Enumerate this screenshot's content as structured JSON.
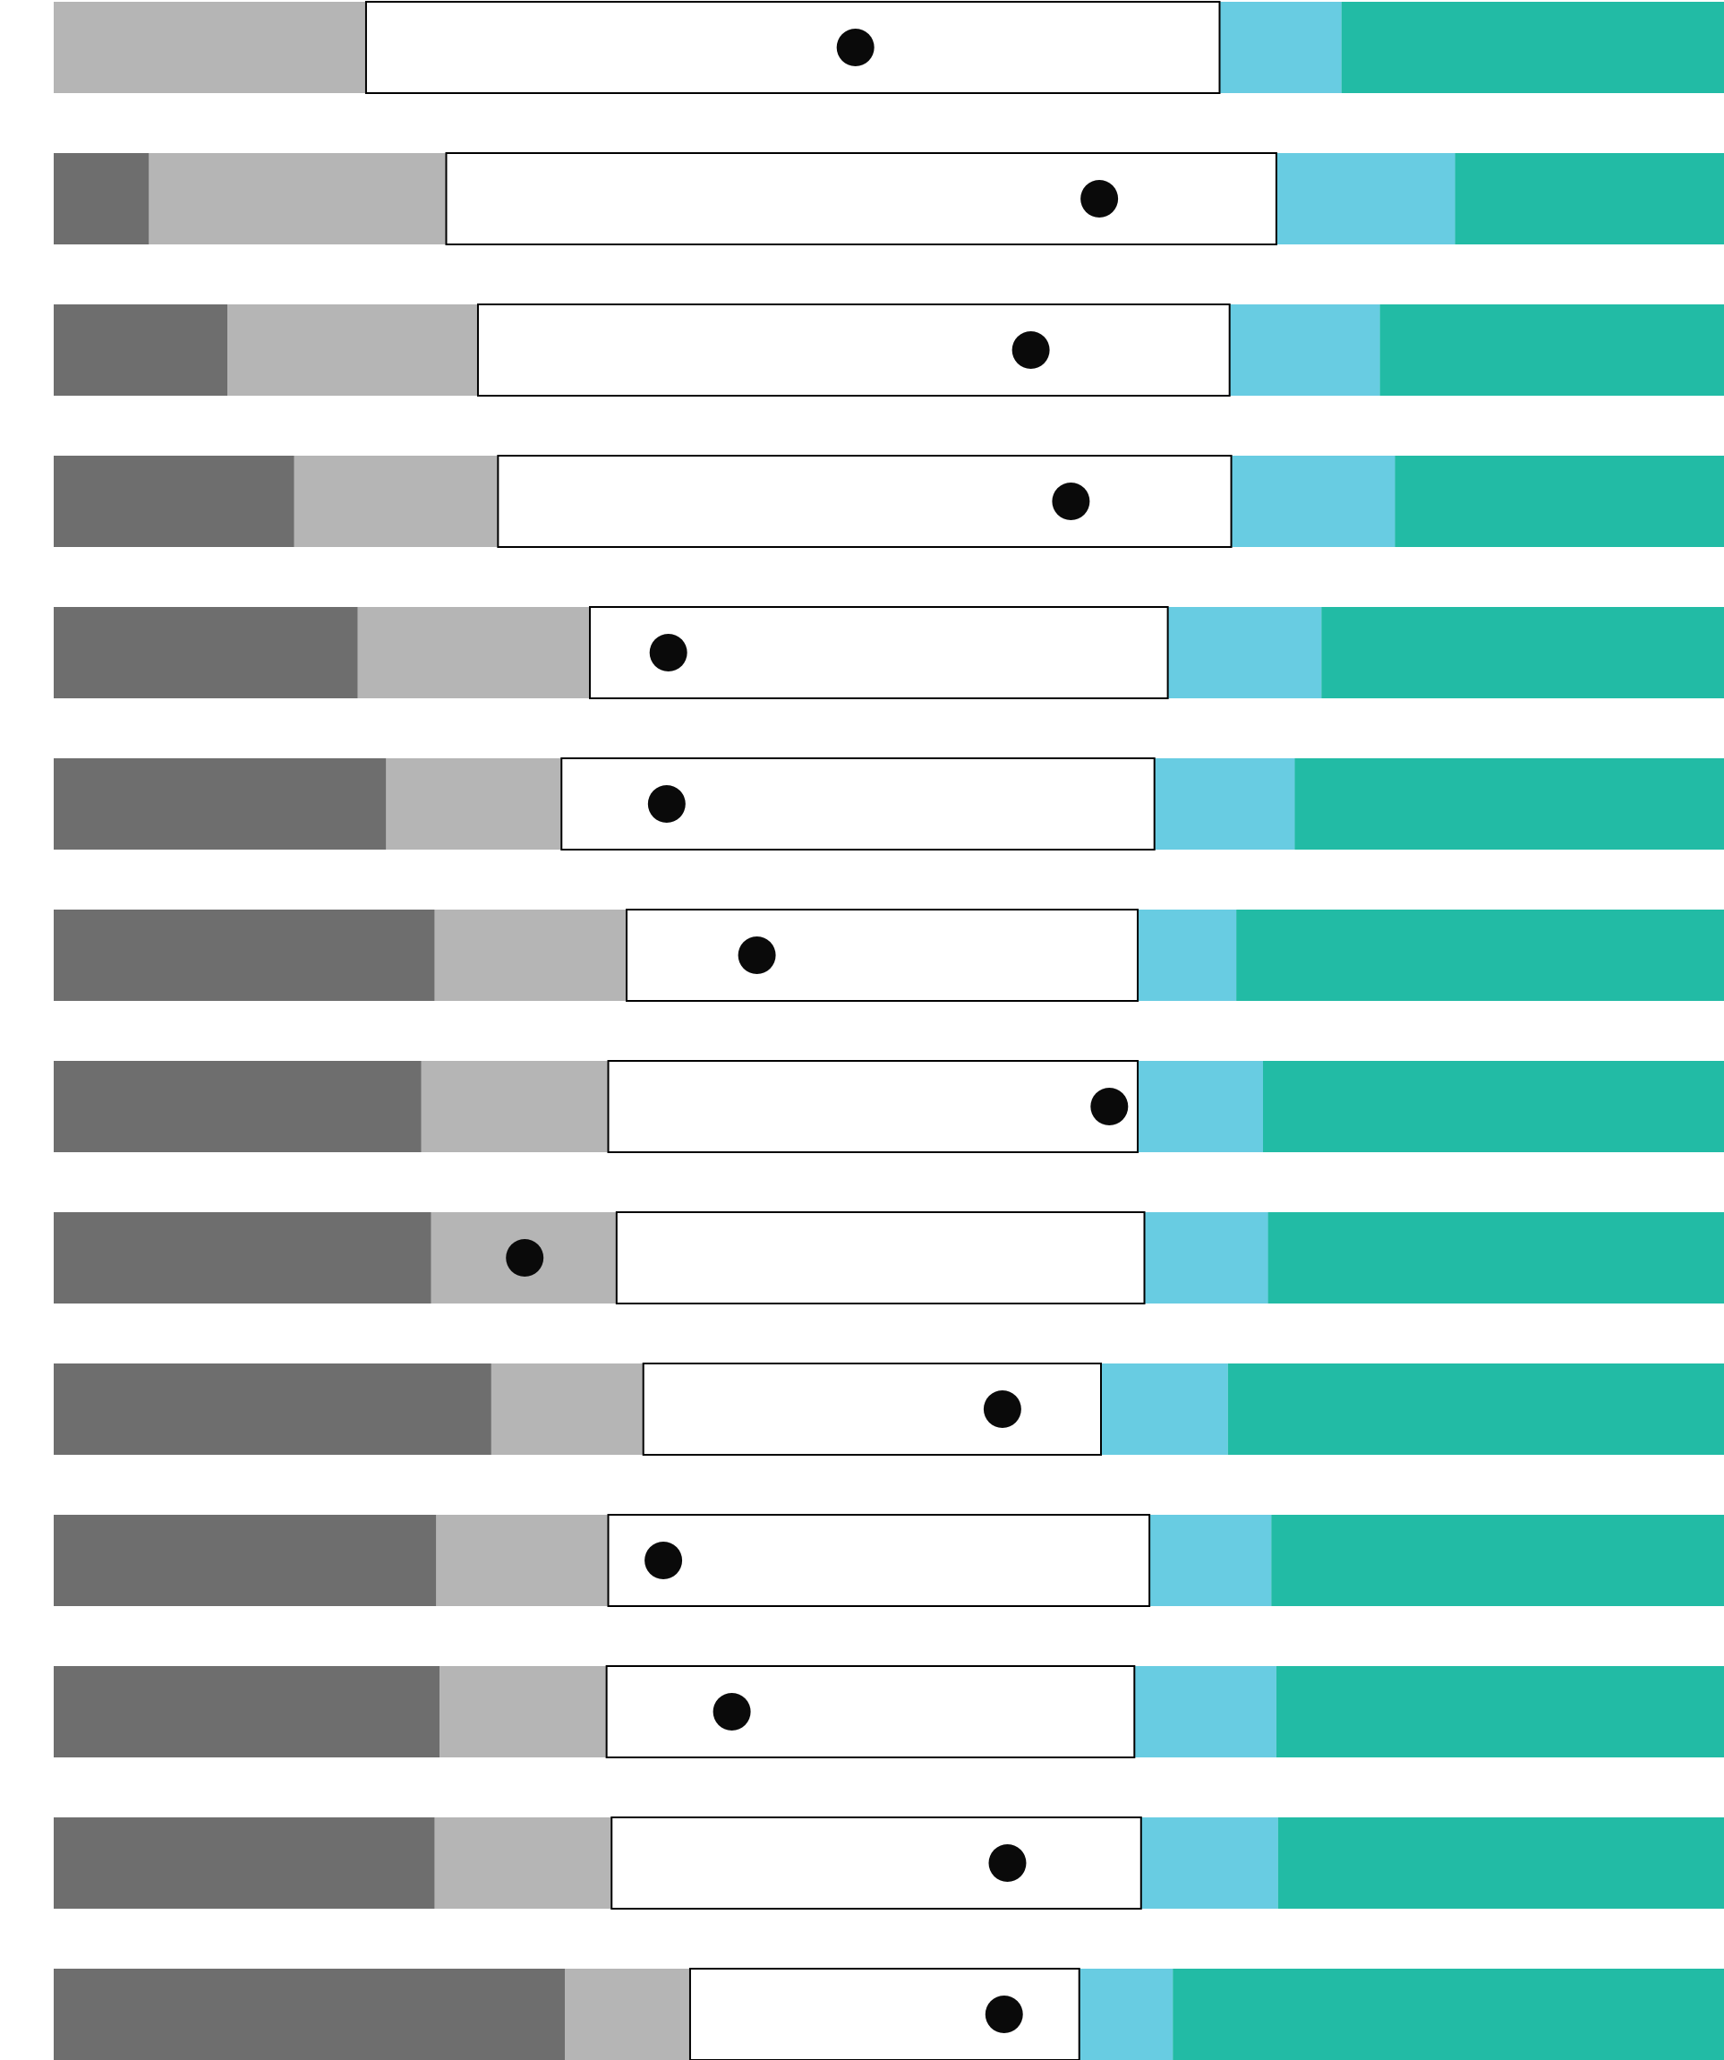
{
  "chart_data": {
    "type": "bar",
    "stacked": true,
    "orientation": "horizontal",
    "title": "",
    "xlabel": "",
    "ylabel": "",
    "grid": false,
    "legend": "none",
    "xlim": [
      0,
      100
    ],
    "categories": [
      "",
      "",
      "",
      "",
      "",
      "",
      "",
      "",
      "",
      "",
      "",
      "",
      "",
      ""
    ],
    "series": [
      {
        "color": "#6e6e6e",
        "values": [
          0,
          5.7,
          10.4,
          14.4,
          18.2,
          19.9,
          22.8,
          22.0,
          22.6,
          26.2,
          22.9,
          23.1,
          22.8,
          30.6
        ]
      },
      {
        "color": "#b5b5b5",
        "values": [
          18.7,
          17.8,
          15.0,
          12.2,
          13.9,
          10.5,
          11.5,
          11.2,
          11.1,
          9.1,
          10.3,
          10.0,
          10.6,
          7.5
        ]
      },
      {
        "color": "#ffffff",
        "outline": "#000000",
        "values": [
          51.1,
          49.7,
          45.0,
          43.9,
          34.6,
          35.5,
          30.6,
          31.7,
          31.6,
          27.4,
          32.4,
          31.6,
          31.7,
          23.3
        ]
      },
      {
        "color": "#68cce2",
        "values": [
          7.3,
          10.7,
          9.0,
          9.8,
          9.2,
          8.4,
          5.9,
          7.5,
          7.4,
          7.6,
          7.3,
          8.5,
          8.2,
          5.6
        ]
      },
      {
        "color": "#22bba5",
        "values": [
          22.9,
          16.1,
          20.6,
          19.7,
          24.1,
          25.7,
          29.2,
          27.6,
          27.3,
          29.7,
          27.1,
          26.8,
          26.7,
          33.0
        ]
      }
    ],
    "markers": {
      "color": "#0a0a0a",
      "values": [
        48.0,
        62.6,
        58.5,
        60.9,
        36.8,
        36.7,
        42.1,
        63.2,
        28.2,
        56.8,
        36.5,
        40.6,
        57.1,
        56.9
      ]
    }
  }
}
